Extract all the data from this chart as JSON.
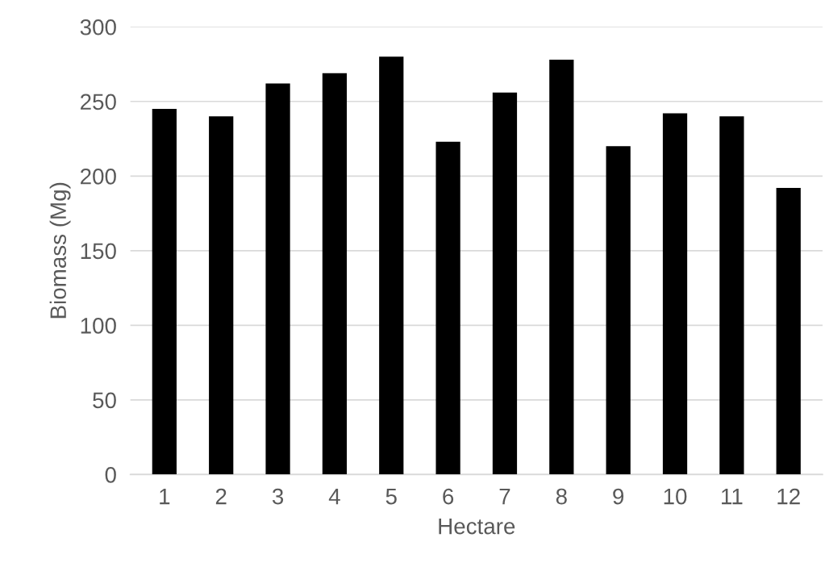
{
  "chart_data": {
    "type": "bar",
    "xlabel": "Hectare",
    "ylabel": "Biomass (Mg)",
    "categories": [
      "1",
      "2",
      "3",
      "4",
      "5",
      "6",
      "7",
      "8",
      "9",
      "10",
      "11",
      "12"
    ],
    "values": [
      245,
      240,
      262,
      269,
      280,
      223,
      256,
      278,
      220,
      242,
      240,
      192
    ],
    "color": "#000000",
    "ylim": [
      0,
      300
    ],
    "yticks": [
      0,
      50,
      100,
      150,
      200,
      250,
      300
    ],
    "grid": "y"
  }
}
